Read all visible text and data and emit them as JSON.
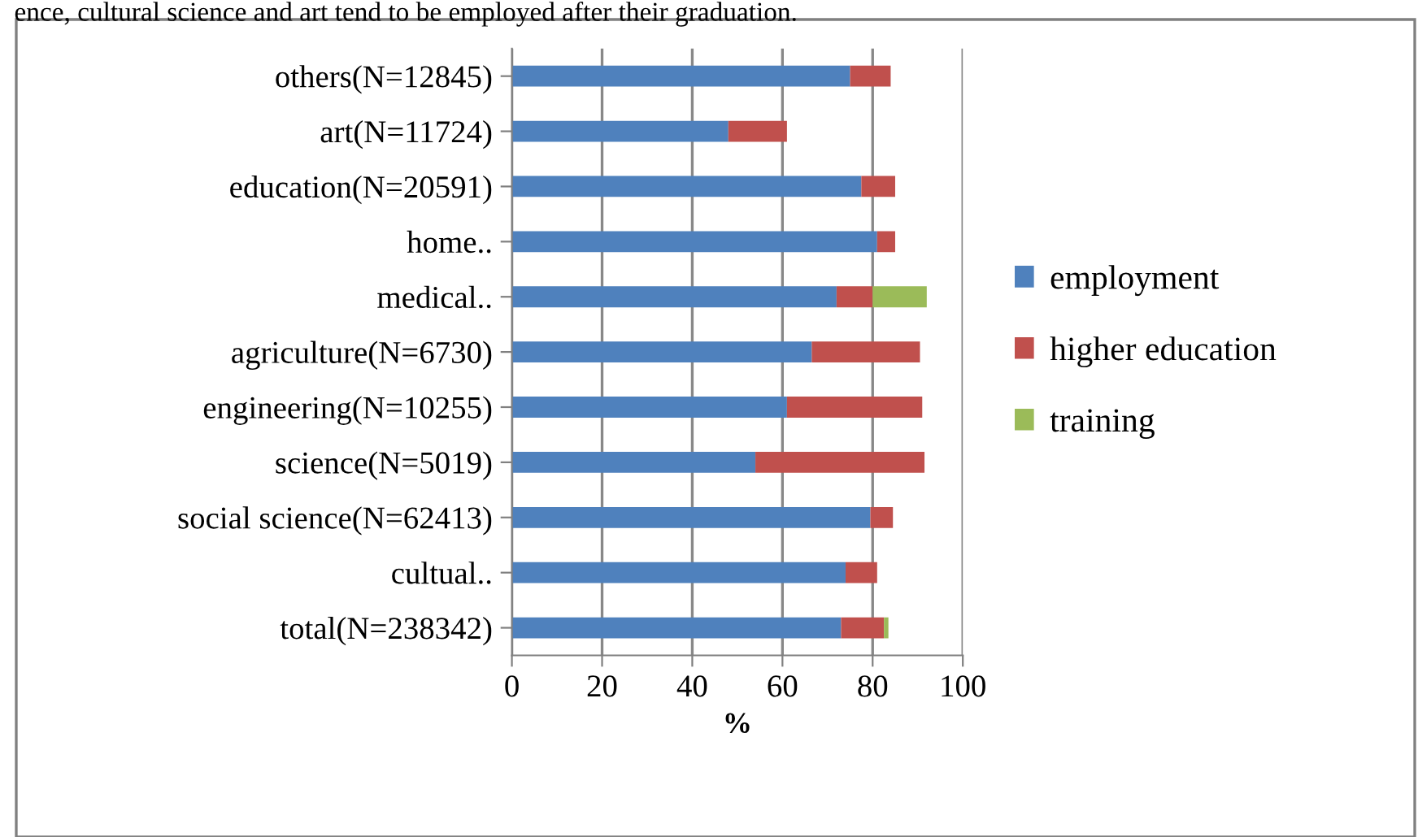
{
  "chart_data": {
    "type": "bar",
    "orientation": "horizontal",
    "stacked": true,
    "xlabel": "%",
    "annotations": [
      "ence, cultural science and art tend to be employed after their graduation."
    ],
    "categories": [
      "others(N=12845)",
      "art(N=11724)",
      "education(N=20591)",
      "home..",
      "medical..",
      "agriculture(N=6730)",
      "engineering(N=10255)",
      "science(N=5019)",
      "social science(N=62413)",
      "cultual..",
      "total(N=238342)"
    ],
    "series": [
      {
        "name": "employment",
        "color": "#4f81bd",
        "values": [
          75,
          48,
          77.5,
          81,
          72,
          66.5,
          61,
          54,
          79.5,
          74,
          73
        ]
      },
      {
        "name": "higher education",
        "color": "#c0504d",
        "values": [
          9,
          13,
          7.5,
          4,
          8,
          24,
          30,
          37.5,
          5,
          7,
          9.5
        ]
      },
      {
        "name": "training",
        "color": "#9bbb59",
        "values": [
          0,
          0,
          0,
          0,
          12,
          0,
          0,
          0,
          0,
          0,
          1
        ]
      }
    ],
    "xlim": [
      0,
      100
    ],
    "xticks": [
      0,
      20,
      40,
      60,
      80,
      100
    ],
    "grid": "x",
    "legend": "right"
  }
}
